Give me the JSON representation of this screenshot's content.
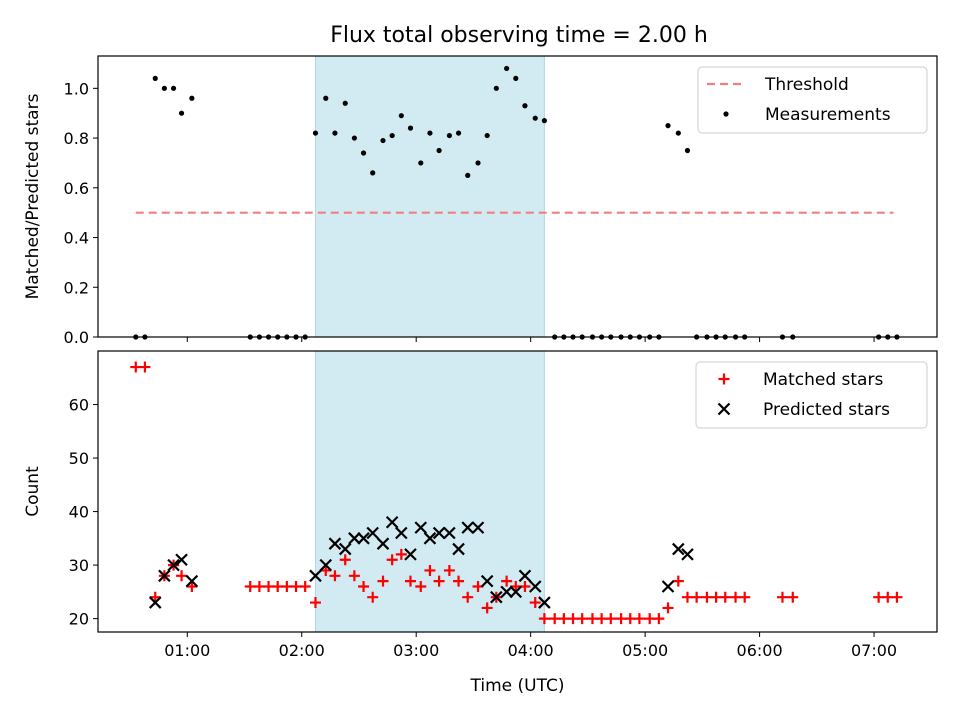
{
  "title": "Flux total observing time = 2.00 h",
  "colors": {
    "threshold": "#f08080",
    "measurement": "#000000",
    "matched": "#ff0000",
    "predicted": "#000000",
    "highlight": "#add8e6"
  },
  "chart_data": [
    {
      "type": "scatter",
      "ylabel": "Matched/Predicted stars",
      "x_unit": "hours (UTC)",
      "xlim": [
        0.22,
        7.55
      ],
      "ylim": [
        0.0,
        1.13
      ],
      "yticks": [
        "0.0",
        "0.2",
        "0.4",
        "0.6",
        "0.8",
        "1.0"
      ],
      "highlight_span": [
        2.12,
        4.12
      ],
      "threshold": {
        "name": "Threshold",
        "value": 0.5,
        "x_range": [
          0.55,
          7.17
        ]
      },
      "legend": {
        "location": "upper right",
        "entries": [
          "Threshold",
          "Measurements"
        ]
      },
      "series": [
        {
          "name": "Measurements",
          "marker": "dot",
          "x": [
            0.55,
            0.63,
            0.72,
            0.8,
            0.88,
            0.95,
            1.04,
            1.55,
            1.63,
            1.71,
            1.79,
            1.87,
            1.95,
            2.03,
            2.12,
            2.21,
            2.29,
            2.38,
            2.46,
            2.54,
            2.62,
            2.71,
            2.79,
            2.87,
            2.95,
            3.04,
            3.12,
            3.2,
            3.29,
            3.37,
            3.45,
            3.54,
            3.62,
            3.7,
            3.79,
            3.87,
            3.95,
            4.04,
            4.12,
            4.21,
            4.29,
            4.37,
            4.45,
            4.54,
            4.62,
            4.7,
            4.79,
            4.87,
            4.95,
            5.04,
            5.12,
            5.2,
            5.29,
            5.37,
            5.45,
            5.54,
            5.62,
            5.7,
            5.79,
            5.87,
            6.2,
            6.29,
            7.04,
            7.12,
            7.2
          ],
          "y": [
            0,
            0,
            1.04,
            1.0,
            1.0,
            0.9,
            0.96,
            0,
            0,
            0,
            0,
            0,
            0,
            0,
            0.82,
            0.96,
            0.82,
            0.94,
            0.8,
            0.74,
            0.66,
            0.79,
            0.81,
            0.89,
            0.84,
            0.7,
            0.82,
            0.75,
            0.81,
            0.82,
            0.65,
            0.7,
            0.81,
            1.0,
            1.08,
            1.04,
            0.93,
            0.88,
            0.87,
            0,
            0,
            0,
            0,
            0,
            0,
            0,
            0,
            0,
            0,
            0,
            0,
            0.85,
            0.82,
            0.75,
            0,
            0,
            0,
            0,
            0,
            0,
            0,
            0,
            0,
            0,
            0
          ]
        }
      ]
    },
    {
      "type": "scatter",
      "xlabel": "Time (UTC)",
      "ylabel": "Count",
      "x_unit": "hours (UTC)",
      "xlim": [
        0.22,
        7.55
      ],
      "ylim": [
        17.5,
        70.0
      ],
      "xticks": [
        {
          "value": 1,
          "label": "01:00"
        },
        {
          "value": 2,
          "label": "02:00"
        },
        {
          "value": 3,
          "label": "03:00"
        },
        {
          "value": 4,
          "label": "04:00"
        },
        {
          "value": 5,
          "label": "05:00"
        },
        {
          "value": 6,
          "label": "06:00"
        },
        {
          "value": 7,
          "label": "07:00"
        }
      ],
      "yticks": [
        "20",
        "30",
        "40",
        "50",
        "60"
      ],
      "highlight_span": [
        2.12,
        4.12
      ],
      "legend": {
        "location": "upper right",
        "entries": [
          "Matched stars",
          "Predicted stars"
        ]
      },
      "series": [
        {
          "name": "Matched stars",
          "marker": "plus",
          "x": [
            0.55,
            0.63,
            0.72,
            0.8,
            0.88,
            0.95,
            1.04,
            1.55,
            1.63,
            1.71,
            1.79,
            1.87,
            1.95,
            2.03,
            2.12,
            2.21,
            2.29,
            2.38,
            2.46,
            2.54,
            2.62,
            2.71,
            2.79,
            2.87,
            2.95,
            3.04,
            3.12,
            3.2,
            3.29,
            3.37,
            3.45,
            3.54,
            3.62,
            3.7,
            3.79,
            3.87,
            3.95,
            4.04,
            4.12,
            4.21,
            4.29,
            4.37,
            4.45,
            4.54,
            4.62,
            4.7,
            4.79,
            4.87,
            4.95,
            5.04,
            5.12,
            5.2,
            5.29,
            5.37,
            5.45,
            5.54,
            5.62,
            5.7,
            5.79,
            5.87,
            6.2,
            6.29,
            7.04,
            7.12,
            7.2
          ],
          "y": [
            67,
            67,
            24,
            28,
            30,
            28,
            26,
            26,
            26,
            26,
            26,
            26,
            26,
            26,
            23,
            29,
            28,
            31,
            28,
            26,
            24,
            27,
            31,
            32,
            27,
            26,
            29,
            27,
            29,
            27,
            24,
            26,
            22,
            24,
            27,
            26,
            26,
            23,
            20,
            20,
            20,
            20,
            20,
            20,
            20,
            20,
            20,
            20,
            20,
            20,
            20,
            22,
            27,
            24,
            24,
            24,
            24,
            24,
            24,
            24,
            24,
            24,
            24,
            24,
            24
          ]
        },
        {
          "name": "Predicted stars",
          "marker": "x",
          "x": [
            0.72,
            0.8,
            0.88,
            0.95,
            1.04,
            2.12,
            2.21,
            2.29,
            2.38,
            2.46,
            2.54,
            2.62,
            2.71,
            2.79,
            2.87,
            2.95,
            3.04,
            3.12,
            3.2,
            3.29,
            3.37,
            3.45,
            3.54,
            3.62,
            3.7,
            3.79,
            3.87,
            3.95,
            4.04,
            4.12,
            5.2,
            5.29,
            5.37
          ],
          "y": [
            23,
            28,
            30,
            31,
            27,
            28,
            30,
            34,
            33,
            35,
            35,
            36,
            34,
            38,
            36,
            32,
            37,
            35,
            36,
            36,
            33,
            37,
            37,
            27,
            24,
            25,
            25,
            28,
            26,
            23,
            26,
            33,
            32
          ]
        }
      ]
    }
  ]
}
